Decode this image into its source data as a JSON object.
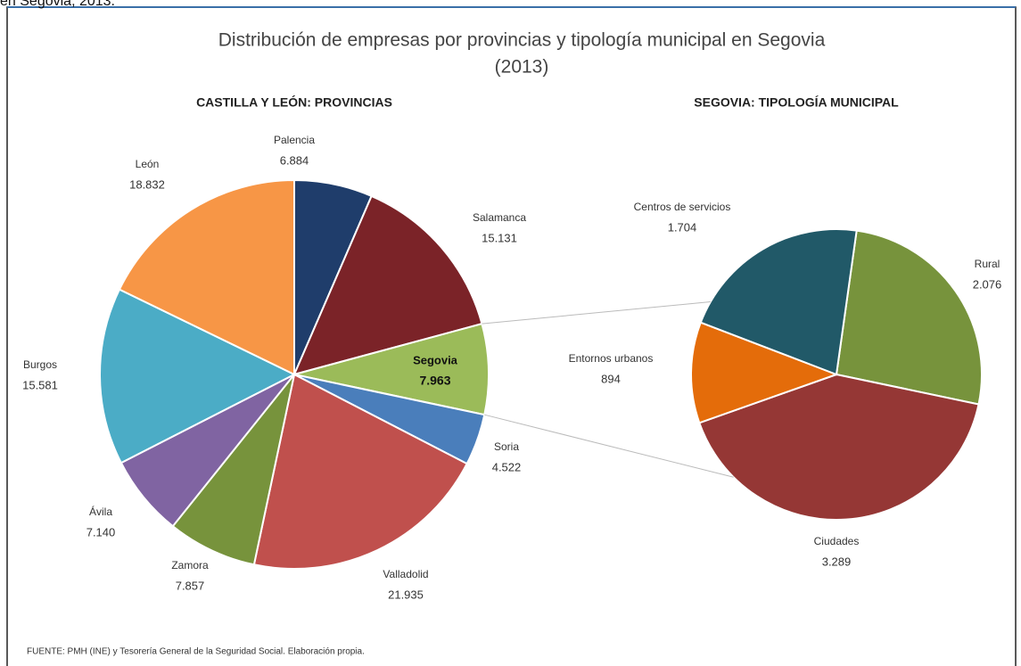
{
  "caption": "en Segovia, 2013.",
  "title": [
    "Distribución de empresas por provincias y tipología municipal en Segovia",
    "(2013)"
  ],
  "source": "FUENTE: PMH (INE) y Tesorería General de la Seguridad Social. Elaboración propia.",
  "chart_data": [
    {
      "type": "pie",
      "title": "CASTILLA Y LEÓN: PROVINCIAS",
      "categories": [
        "Palencia",
        "Salamanca",
        "Segovia",
        "Soria",
        "Valladolid",
        "Zamora",
        "Ávila",
        "Burgos",
        "León"
      ],
      "values": [
        6884,
        15131,
        7963,
        4522,
        21935,
        7857,
        7140,
        15581,
        18832
      ],
      "value_labels": [
        "6.884",
        "15.131",
        "7.963",
        "4.522",
        "21.935",
        "7.857",
        "7.140",
        "15.581",
        "18.832"
      ],
      "colors": [
        "#1f3d6b",
        "#7b2328",
        "#9bbb59",
        "#4a7ebb",
        "#c0504d",
        "#77933c",
        "#8064a2",
        "#4bacc6",
        "#f79646"
      ]
    },
    {
      "type": "pie",
      "title": "SEGOVIA: TIPOLOGÍA MUNICIPAL",
      "categories": [
        "Rural",
        "Ciudades",
        "Entornos urbanos",
        "Centros de servicios"
      ],
      "values": [
        2076,
        3289,
        894,
        1704
      ],
      "value_labels": [
        "2.076",
        "3.289",
        "894",
        "1.704"
      ],
      "colors": [
        "#77933c",
        "#953735",
        "#e46c0a",
        "#215968"
      ]
    }
  ]
}
